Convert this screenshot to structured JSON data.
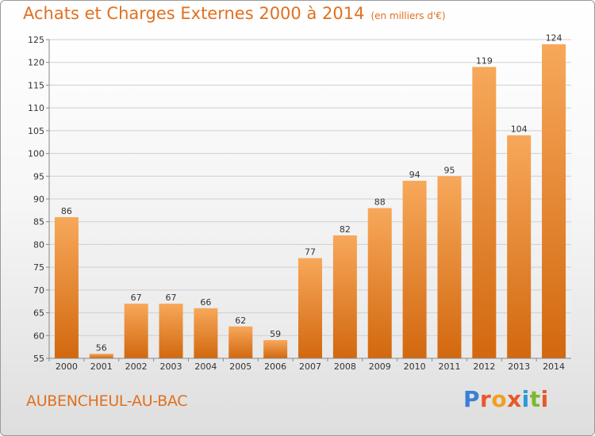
{
  "header": {
    "title": "Achats et Charges Externes 2000 à 2014",
    "unit": "(en milliers d'€)"
  },
  "footer": {
    "city": "AUBENCHEUL-AU-BAC",
    "logo_letters": [
      {
        "char": "P",
        "color": "#3a7fd6"
      },
      {
        "char": "r",
        "color": "#e8582a"
      },
      {
        "char": "o",
        "color": "#f0a020"
      },
      {
        "char": "x",
        "color": "#e8582a"
      },
      {
        "char": "i",
        "color": "#2a9ad6"
      },
      {
        "char": "t",
        "color": "#7cb82f"
      },
      {
        "char": "i",
        "color": "#e8582a"
      }
    ]
  },
  "chart_data": {
    "type": "bar",
    "title": "Achats et Charges Externes 2000 à 2014",
    "subtitle": "(en milliers d'€)",
    "categories": [
      "2000",
      "2001",
      "2002",
      "2003",
      "2004",
      "2005",
      "2006",
      "2007",
      "2008",
      "2009",
      "2010",
      "2011",
      "2012",
      "2013",
      "2014"
    ],
    "values": [
      86,
      56,
      67,
      67,
      66,
      62,
      59,
      77,
      82,
      88,
      94,
      95,
      119,
      104,
      124
    ],
    "ylim": [
      55,
      125
    ],
    "yticks": [
      55,
      60,
      65,
      70,
      75,
      80,
      85,
      90,
      95,
      100,
      105,
      110,
      115,
      120,
      125
    ],
    "grid": true,
    "bar_color": "#f0943c",
    "bar_color_dark": "#d66b14"
  }
}
